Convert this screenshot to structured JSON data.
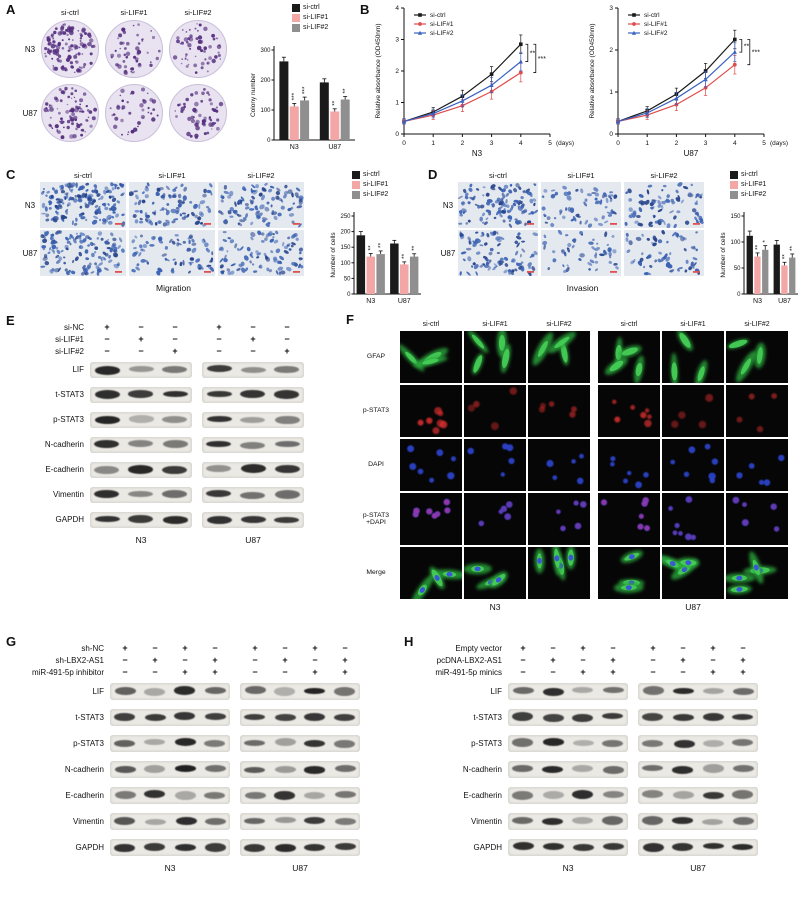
{
  "palette": {
    "black": "#1a1a1a",
    "pink": "#f2a6a6",
    "gray": "#8f8f8f",
    "red_line": "#e04b4b",
    "blue_line": "#3a62c0",
    "colony": "#55307f",
    "dish_bg": "#e9e2f0",
    "micro_bg": "#e4e9f0",
    "cell_blue": "#3c63b2",
    "scalebar_red": "#e05050"
  },
  "panelA": {
    "label": "A",
    "col_headers": [
      "si-ctrl",
      "si-LIF#1",
      "si-LIF#2"
    ],
    "row_labels": [
      "N3",
      "U87"
    ],
    "colony_density": [
      [
        120,
        52,
        60
      ],
      [
        88,
        40,
        55
      ]
    ],
    "chart_data": {
      "type": "bar",
      "ylabel": "Colony number",
      "ylim": [
        0,
        300
      ],
      "yticks": [
        0,
        100,
        200,
        300
      ],
      "categories": [
        "N3",
        "U87"
      ],
      "series": [
        {
          "name": "si-ctrl",
          "color": "#1a1a1a",
          "values": [
            262,
            192
          ],
          "errors": [
            14,
            12
          ],
          "sig": [
            "",
            ""
          ]
        },
        {
          "name": "si-LIF#1",
          "color": "#f2a6a6",
          "values": [
            112,
            95
          ],
          "errors": [
            10,
            9
          ],
          "sig": [
            "***",
            "**"
          ]
        },
        {
          "name": "si-LIF#2",
          "color": "#8f8f8f",
          "values": [
            132,
            135
          ],
          "errors": [
            11,
            10
          ],
          "sig": [
            "***",
            "**"
          ]
        }
      ]
    }
  },
  "panelB": {
    "label": "B",
    "chart_data": [
      {
        "type": "line",
        "ylabel": "Relative absorbance (OD450nm)",
        "xlabel": "N3",
        "x_unit": "(days)",
        "x": [
          0,
          1,
          2,
          3,
          4
        ],
        "xticks": [
          0,
          1,
          2,
          3,
          4,
          5
        ],
        "ylim": [
          0,
          4
        ],
        "yticks": [
          0,
          1,
          2,
          3,
          4
        ],
        "series": [
          {
            "name": "si-ctrl",
            "color": "#1a1a1a",
            "values": [
              0.4,
              0.7,
              1.2,
              1.9,
              2.85
            ]
          },
          {
            "name": "si-LIF#1",
            "color": "#e04b4b",
            "values": [
              0.4,
              0.6,
              0.9,
              1.35,
              1.95
            ]
          },
          {
            "name": "si-LIF#2",
            "color": "#3a62c0",
            "values": [
              0.4,
              0.65,
              1.05,
              1.55,
              2.3
            ]
          }
        ],
        "sig": [
          "**",
          "***"
        ]
      },
      {
        "type": "line",
        "ylabel": "Relative absorbance (OD450nm)",
        "xlabel": "U87",
        "x_unit": "(days)",
        "x": [
          0,
          1,
          2,
          3,
          4
        ],
        "xticks": [
          0,
          1,
          2,
          3,
          4,
          5
        ],
        "ylim": [
          0,
          3
        ],
        "yticks": [
          0,
          1,
          2,
          3
        ],
        "series": [
          {
            "name": "si-ctrl",
            "color": "#1a1a1a",
            "values": [
              0.3,
              0.55,
              0.95,
              1.5,
              2.25
            ]
          },
          {
            "name": "si-LIF#1",
            "color": "#e04b4b",
            "values": [
              0.3,
              0.45,
              0.7,
              1.1,
              1.65
            ]
          },
          {
            "name": "si-LIF#2",
            "color": "#3a62c0",
            "values": [
              0.3,
              0.5,
              0.85,
              1.3,
              1.95
            ]
          }
        ],
        "sig": [
          "**",
          "***"
        ]
      }
    ]
  },
  "panelC": {
    "label": "C",
    "col_headers": [
      "si-ctrl",
      "si-LIF#1",
      "si-LIF#2"
    ],
    "row_labels": [
      "N3",
      "U87"
    ],
    "caption": "Migration",
    "cell_density": [
      [
        150,
        90,
        95
      ],
      [
        125,
        70,
        90
      ]
    ],
    "chart_data": {
      "type": "bar",
      "ylabel": "Number of cells",
      "ylim": [
        0,
        250
      ],
      "yticks": [
        0,
        50,
        100,
        150,
        200,
        250
      ],
      "categories": [
        "N3",
        "U87"
      ],
      "series": [
        {
          "name": "si-ctrl",
          "color": "#1a1a1a",
          "values": [
            188,
            162
          ],
          "errors": [
            12,
            10
          ],
          "sig": [
            "",
            ""
          ]
        },
        {
          "name": "si-LIF#1",
          "color": "#f2a6a6",
          "values": [
            120,
            95
          ],
          "errors": [
            10,
            8
          ],
          "sig": [
            "**",
            "**"
          ]
        },
        {
          "name": "si-LIF#2",
          "color": "#8f8f8f",
          "values": [
            128,
            120
          ],
          "errors": [
            10,
            9
          ],
          "sig": [
            "**",
            "**"
          ]
        }
      ]
    }
  },
  "panelD": {
    "label": "D",
    "col_headers": [
      "si-ctrl",
      "si-LIF#1",
      "si-LIF#2"
    ],
    "row_labels": [
      "N3",
      "U87"
    ],
    "caption": "Invasion",
    "cell_density": [
      [
        110,
        62,
        78
      ],
      [
        95,
        50,
        66
      ]
    ],
    "chart_data": {
      "type": "bar",
      "ylabel": "Number of cells",
      "ylim": [
        0,
        150
      ],
      "yticks": [
        0,
        50,
        100,
        150
      ],
      "categories": [
        "N3",
        "U87"
      ],
      "series": [
        {
          "name": "si-ctrl",
          "color": "#1a1a1a",
          "values": [
            112,
            95
          ],
          "errors": [
            9,
            8
          ],
          "sig": [
            "",
            ""
          ]
        },
        {
          "name": "si-LIF#1",
          "color": "#f2a6a6",
          "values": [
            72,
            55
          ],
          "errors": [
            7,
            6
          ],
          "sig": [
            "**",
            "**"
          ]
        },
        {
          "name": "si-LIF#2",
          "color": "#8f8f8f",
          "values": [
            85,
            70
          ],
          "errors": [
            8,
            7
          ],
          "sig": [
            "*",
            "**"
          ]
        }
      ]
    }
  },
  "panelE": {
    "label": "E",
    "conditions": [
      {
        "name": "si-NC",
        "pattern": [
          "+",
          "−",
          "−"
        ]
      },
      {
        "name": "si-LIF#1",
        "pattern": [
          "−",
          "+",
          "−"
        ]
      },
      {
        "name": "si-LIF#2",
        "pattern": [
          "−",
          "−",
          "+"
        ]
      }
    ],
    "groups": [
      "N3",
      "U87"
    ],
    "proteins": [
      "LIF",
      "t-STAT3",
      "p-STAT3",
      "N-cadherin",
      "E-cadherin",
      "Vimentin",
      "GAPDH"
    ],
    "bands": {
      "LIF": [
        [
          0.92,
          0.38,
          0.5
        ],
        [
          0.85,
          0.42,
          0.55
        ]
      ],
      "t-STAT3": [
        [
          0.85,
          0.82,
          0.84
        ],
        [
          0.85,
          0.83,
          0.82
        ]
      ],
      "p-STAT3": [
        [
          0.88,
          0.3,
          0.42
        ],
        [
          0.82,
          0.35,
          0.48
        ]
      ],
      "N-cadherin": [
        [
          0.88,
          0.45,
          0.52
        ],
        [
          0.85,
          0.48,
          0.55
        ]
      ],
      "E-cadherin": [
        [
          0.42,
          0.88,
          0.8
        ],
        [
          0.38,
          0.85,
          0.82
        ]
      ],
      "Vimentin": [
        [
          0.86,
          0.5,
          0.56
        ],
        [
          0.84,
          0.52,
          0.58
        ]
      ],
      "GAPDH": [
        [
          0.86,
          0.86,
          0.86
        ],
        [
          0.86,
          0.86,
          0.86
        ]
      ]
    }
  },
  "panelF": {
    "label": "F",
    "col_headers": [
      "si-ctrl",
      "si-LIF#1",
      "si-LIF#2",
      "si-ctrl",
      "si-LIF#1",
      "si-LIF#2"
    ],
    "row_labels": [
      "GFAP",
      "p-STAT3",
      "DAPI",
      "p-STAT3\n+DAPI",
      "Merge"
    ],
    "group_labels": [
      "N3",
      "U87"
    ],
    "pstat3_intensity": [
      0.95,
      0.4,
      0.5,
      0.9,
      0.38,
      0.48
    ]
  },
  "panelG": {
    "label": "G",
    "conditions": [
      {
        "name": "sh-NC",
        "pattern": [
          "+",
          "−",
          "+",
          "−"
        ]
      },
      {
        "name": "sh-LBX2-AS1",
        "pattern": [
          "−",
          "+",
          "−",
          "+"
        ]
      },
      {
        "name": "miR-491-5p inhibitor",
        "pattern": [
          "−",
          "−",
          "+",
          "+"
        ]
      }
    ],
    "groups": [
      "N3",
      "U87"
    ],
    "proteins": [
      "LIF",
      "t-STAT3",
      "p-STAT3",
      "N-cadherin",
      "E-cadherin",
      "Vimentin",
      "GAPDH"
    ],
    "bands": {
      "LIF": [
        [
          0.65,
          0.3,
          0.92,
          0.58
        ],
        [
          0.62,
          0.3,
          0.88,
          0.55
        ]
      ],
      "t-STAT3": [
        [
          0.82,
          0.8,
          0.84,
          0.8
        ],
        [
          0.82,
          0.8,
          0.82,
          0.8
        ]
      ],
      "p-STAT3": [
        [
          0.65,
          0.28,
          0.9,
          0.55
        ],
        [
          0.6,
          0.3,
          0.86,
          0.52
        ]
      ],
      "N-cadherin": [
        [
          0.68,
          0.32,
          0.9,
          0.6
        ],
        [
          0.65,
          0.35,
          0.88,
          0.58
        ]
      ],
      "E-cadherin": [
        [
          0.5,
          0.85,
          0.28,
          0.55
        ],
        [
          0.52,
          0.82,
          0.3,
          0.58
        ]
      ],
      "Vimentin": [
        [
          0.66,
          0.32,
          0.9,
          0.58
        ],
        [
          0.62,
          0.34,
          0.86,
          0.56
        ]
      ],
      "GAPDH": [
        [
          0.85,
          0.85,
          0.85,
          0.85
        ],
        [
          0.85,
          0.85,
          0.85,
          0.85
        ]
      ]
    }
  },
  "panelH": {
    "label": "H",
    "conditions": [
      {
        "name": "Empty vector",
        "pattern": [
          "+",
          "−",
          "+",
          "−"
        ]
      },
      {
        "name": "pcDNA-LBX2-AS1",
        "pattern": [
          "−",
          "+",
          "−",
          "+"
        ]
      },
      {
        "name": "miR-491-5p minics",
        "pattern": [
          "−",
          "−",
          "+",
          "+"
        ]
      }
    ],
    "groups": [
      "N3",
      "U87"
    ],
    "proteins": [
      "LIF",
      "t-STAT3",
      "p-STAT3",
      "N-cadherin",
      "E-cadherin",
      "Vimentin",
      "GAPDH"
    ],
    "bands": {
      "LIF": [
        [
          0.6,
          0.92,
          0.32,
          0.6
        ],
        [
          0.58,
          0.88,
          0.3,
          0.56
        ]
      ],
      "t-STAT3": [
        [
          0.82,
          0.8,
          0.82,
          0.8
        ],
        [
          0.8,
          0.82,
          0.8,
          0.82
        ]
      ],
      "p-STAT3": [
        [
          0.58,
          0.9,
          0.28,
          0.55
        ],
        [
          0.55,
          0.86,
          0.3,
          0.52
        ]
      ],
      "N-cadherin": [
        [
          0.6,
          0.9,
          0.32,
          0.58
        ],
        [
          0.58,
          0.88,
          0.34,
          0.56
        ]
      ],
      "E-cadherin": [
        [
          0.55,
          0.28,
          0.85,
          0.5
        ],
        [
          0.52,
          0.3,
          0.82,
          0.52
        ]
      ],
      "Vimentin": [
        [
          0.6,
          0.9,
          0.32,
          0.58
        ],
        [
          0.58,
          0.86,
          0.34,
          0.55
        ]
      ],
      "GAPDH": [
        [
          0.85,
          0.85,
          0.85,
          0.85
        ],
        [
          0.85,
          0.85,
          0.85,
          0.85
        ]
      ]
    }
  }
}
